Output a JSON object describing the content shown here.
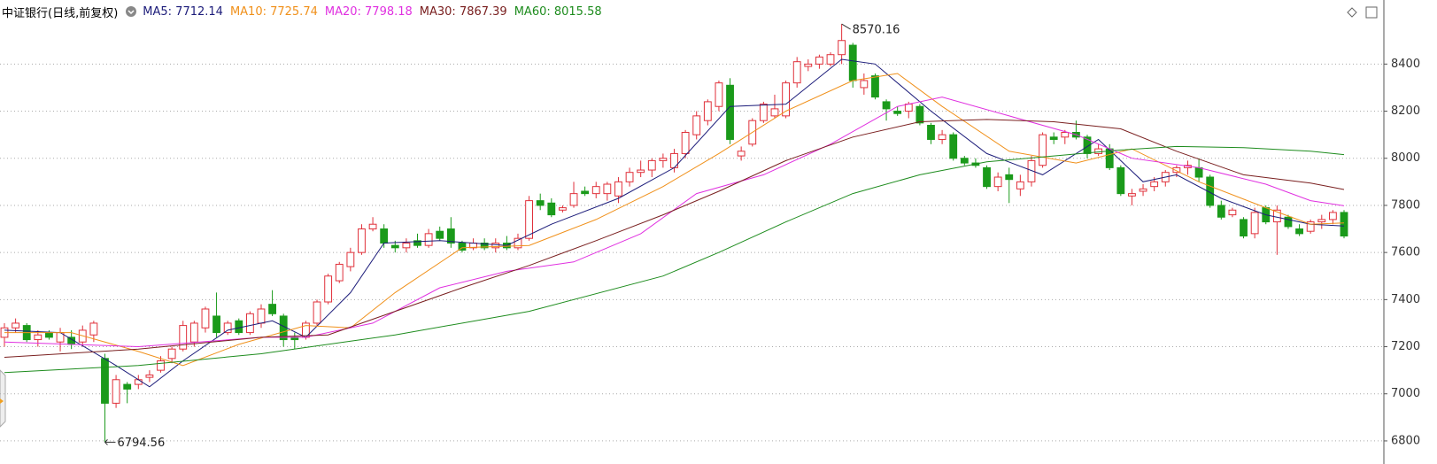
{
  "chart_data": {
    "type": "candlestick",
    "title": "中证银行(日线,前复权)",
    "ylim": [
      6702,
      8672
    ],
    "yticks": [
      6800,
      7000,
      7200,
      7400,
      7600,
      7800,
      8000,
      8200,
      8400
    ],
    "grid": true,
    "up_color": "#e0303a",
    "down_color": "#1a9a1a",
    "ohlc": [
      [
        7240,
        7300,
        7200,
        7280
      ],
      [
        7280,
        7320,
        7260,
        7300
      ],
      [
        7290,
        7300,
        7220,
        7230
      ],
      [
        7230,
        7270,
        7200,
        7250
      ],
      [
        7260,
        7270,
        7230,
        7240
      ],
      [
        7220,
        7280,
        7180,
        7260
      ],
      [
        7240,
        7270,
        7190,
        7210
      ],
      [
        7220,
        7290,
        7200,
        7270
      ],
      [
        7250,
        7310,
        7220,
        7300
      ],
      [
        7150,
        7170,
        6794.56,
        6960
      ],
      [
        6960,
        7080,
        6940,
        7060
      ],
      [
        7040,
        7050,
        6960,
        7020
      ],
      [
        7040,
        7080,
        7020,
        7060
      ],
      [
        7070,
        7100,
        7050,
        7080
      ],
      [
        7100,
        7160,
        7090,
        7140
      ],
      [
        7150,
        7200,
        7130,
        7190
      ],
      [
        7190,
        7310,
        7180,
        7290
      ],
      [
        7220,
        7310,
        7200,
        7300
      ],
      [
        7280,
        7370,
        7260,
        7360
      ],
      [
        7330,
        7430,
        7240,
        7260
      ],
      [
        7260,
        7310,
        7250,
        7300
      ],
      [
        7310,
        7320,
        7250,
        7260
      ],
      [
        7260,
        7350,
        7250,
        7340
      ],
      [
        7300,
        7380,
        7280,
        7360
      ],
      [
        7380,
        7440,
        7330,
        7340
      ],
      [
        7330,
        7340,
        7200,
        7230
      ],
      [
        7240,
        7260,
        7190,
        7230
      ],
      [
        7240,
        7310,
        7230,
        7300
      ],
      [
        7300,
        7400,
        7290,
        7390
      ],
      [
        7390,
        7510,
        7380,
        7500
      ],
      [
        7480,
        7560,
        7470,
        7550
      ],
      [
        7540,
        7620,
        7520,
        7600
      ],
      [
        7600,
        7720,
        7590,
        7700
      ],
      [
        7700,
        7750,
        7690,
        7720
      ],
      [
        7700,
        7720,
        7620,
        7640
      ],
      [
        7630,
        7650,
        7600,
        7620
      ],
      [
        7620,
        7660,
        7600,
        7640
      ],
      [
        7650,
        7680,
        7620,
        7630
      ],
      [
        7630,
        7700,
        7620,
        7680
      ],
      [
        7690,
        7710,
        7650,
        7660
      ],
      [
        7700,
        7750,
        7620,
        7640
      ],
      [
        7640,
        7650,
        7600,
        7610
      ],
      [
        7620,
        7660,
        7610,
        7640
      ],
      [
        7640,
        7660,
        7610,
        7620
      ],
      [
        7620,
        7660,
        7600,
        7640
      ],
      [
        7640,
        7670,
        7610,
        7620
      ],
      [
        7620,
        7680,
        7610,
        7660
      ],
      [
        7660,
        7840,
        7650,
        7820
      ],
      [
        7820,
        7850,
        7780,
        7800
      ],
      [
        7810,
        7830,
        7750,
        7760
      ],
      [
        7780,
        7800,
        7770,
        7790
      ],
      [
        7800,
        7900,
        7790,
        7850
      ],
      [
        7860,
        7880,
        7840,
        7850
      ],
      [
        7850,
        7900,
        7830,
        7880
      ],
      [
        7850,
        7900,
        7820,
        7890
      ],
      [
        7840,
        7920,
        7810,
        7900
      ],
      [
        7900,
        7960,
        7880,
        7940
      ],
      [
        7940,
        7990,
        7920,
        7950
      ],
      [
        7950,
        8000,
        7920,
        7990
      ],
      [
        7990,
        8020,
        7960,
        8000
      ],
      [
        7960,
        8040,
        7940,
        8020
      ],
      [
        8020,
        8120,
        8000,
        8110
      ],
      [
        8100,
        8200,
        8080,
        8180
      ],
      [
        8160,
        8250,
        8140,
        8240
      ],
      [
        8220,
        8330,
        8200,
        8320
      ],
      [
        8310,
        8340,
        8060,
        8080
      ],
      [
        8010,
        8050,
        7990,
        8030
      ],
      [
        8060,
        8170,
        8050,
        8160
      ],
      [
        8160,
        8240,
        8150,
        8230
      ],
      [
        8180,
        8270,
        8170,
        8210
      ],
      [
        8180,
        8330,
        8170,
        8320
      ],
      [
        8320,
        8430,
        8300,
        8410
      ],
      [
        8390,
        8420,
        8370,
        8400
      ],
      [
        8400,
        8440,
        8380,
        8430
      ],
      [
        8400,
        8450,
        8390,
        8440
      ],
      [
        8440,
        8570.16,
        8400,
        8500
      ],
      [
        8480,
        8490,
        8300,
        8330
      ],
      [
        8300,
        8360,
        8270,
        8330
      ],
      [
        8350,
        8360,
        8250,
        8260
      ],
      [
        8240,
        8250,
        8160,
        8210
      ],
      [
        8200,
        8220,
        8180,
        8190
      ],
      [
        8200,
        8240,
        8170,
        8230
      ],
      [
        8220,
        8230,
        8140,
        8150
      ],
      [
        8140,
        8150,
        8060,
        8080
      ],
      [
        8080,
        8120,
        8060,
        8100
      ],
      [
        8100,
        8110,
        7990,
        8000
      ],
      [
        8000,
        8010,
        7970,
        7980
      ],
      [
        7980,
        8000,
        7960,
        7970
      ],
      [
        7960,
        7970,
        7870,
        7880
      ],
      [
        7880,
        7940,
        7860,
        7920
      ],
      [
        7930,
        7960,
        7810,
        7910
      ],
      [
        7870,
        7930,
        7840,
        7900
      ],
      [
        7900,
        8010,
        7880,
        7990
      ],
      [
        7970,
        8110,
        7960,
        8100
      ],
      [
        8090,
        8110,
        8060,
        8080
      ],
      [
        8090,
        8120,
        8060,
        8110
      ],
      [
        8110,
        8160,
        8080,
        8090
      ],
      [
        8090,
        8100,
        8000,
        8020
      ],
      [
        8020,
        8060,
        8010,
        8040
      ],
      [
        8040,
        8060,
        7950,
        7960
      ],
      [
        7960,
        7970,
        7840,
        7850
      ],
      [
        7840,
        7870,
        7800,
        7850
      ],
      [
        7860,
        7890,
        7840,
        7870
      ],
      [
        7880,
        7920,
        7860,
        7900
      ],
      [
        7900,
        7950,
        7880,
        7940
      ],
      [
        7940,
        7970,
        7920,
        7960
      ],
      [
        7960,
        7990,
        7930,
        7970
      ],
      [
        7960,
        8000,
        7900,
        7920
      ],
      [
        7920,
        7930,
        7790,
        7800
      ],
      [
        7800,
        7820,
        7740,
        7750
      ],
      [
        7760,
        7790,
        7750,
        7780
      ],
      [
        7740,
        7750,
        7660,
        7670
      ],
      [
        7680,
        7790,
        7660,
        7770
      ],
      [
        7790,
        7800,
        7720,
        7730
      ],
      [
        7730,
        7800,
        7590,
        7780
      ],
      [
        7750,
        7760,
        7700,
        7710
      ],
      [
        7700,
        7720,
        7670,
        7680
      ],
      [
        7690,
        7740,
        7680,
        7730
      ],
      [
        7730,
        7760,
        7700,
        7740
      ],
      [
        7740,
        7780,
        7720,
        7770
      ],
      [
        7770,
        7780,
        7660,
        7670
      ]
    ],
    "high_label_index": 75,
    "low_label_index": 9,
    "series": [
      {
        "name": "MA5",
        "legend_label": "MA5: 7712.14",
        "color": "#1c1c7a",
        "x": [
          0,
          5,
          10,
          13,
          16,
          20,
          24,
          27,
          31,
          34,
          39,
          45,
          49,
          55,
          60,
          65,
          70,
          75,
          78,
          83,
          88,
          93,
          98,
          102,
          105,
          109,
          113,
          117,
          120
        ],
        "values": [
          7270,
          7260,
          7120,
          7030,
          7140,
          7270,
          7310,
          7240,
          7430,
          7640,
          7650,
          7630,
          7720,
          7830,
          7960,
          8220,
          8230,
          8420,
          8400,
          8200,
          8020,
          7930,
          8080,
          7900,
          7930,
          7830,
          7760,
          7720,
          7712.14
        ]
      },
      {
        "name": "MA10",
        "legend_label": "MA10: 7725.74",
        "color": "#f0901a",
        "x": [
          0,
          6,
          12,
          16,
          21,
          27,
          31,
          35,
          41,
          47,
          53,
          59,
          64,
          70,
          76,
          80,
          84,
          90,
          96,
          101,
          107,
          113,
          117,
          120
        ],
        "values": [
          7260,
          7260,
          7180,
          7120,
          7210,
          7290,
          7280,
          7430,
          7620,
          7630,
          7740,
          7880,
          8020,
          8200,
          8330,
          8360,
          8220,
          8030,
          7980,
          8040,
          7900,
          7790,
          7720,
          7725.74
        ]
      },
      {
        "name": "MA20",
        "legend_label": "MA20: 7798.18",
        "color": "#e030e0",
        "x": [
          0,
          12,
          23,
          27,
          33,
          39,
          45,
          51,
          57,
          62,
          68,
          74,
          80,
          84,
          90,
          96,
          101,
          107,
          113,
          117,
          120
        ],
        "values": [
          7220,
          7200,
          7240,
          7240,
          7300,
          7450,
          7520,
          7560,
          7680,
          7850,
          7930,
          8060,
          8220,
          8260,
          8180,
          8100,
          8000,
          7960,
          7890,
          7820,
          7798.18
        ]
      },
      {
        "name": "MA30",
        "legend_label": "MA30: 7867.39",
        "color": "#7a2020",
        "x": [
          0,
          12,
          23,
          29,
          35,
          41,
          47,
          53,
          59,
          64,
          70,
          76,
          82,
          88,
          94,
          100,
          105,
          111,
          117,
          120
        ],
        "values": [
          7155,
          7190,
          7240,
          7250,
          7350,
          7450,
          7545,
          7650,
          7760,
          7860,
          7990,
          8090,
          8155,
          8165,
          8155,
          8125,
          8030,
          7930,
          7895,
          7867.39
        ]
      },
      {
        "name": "MA60",
        "legend_label": "MA60: 8015.58",
        "color": "#1e8c1e",
        "x": [
          0,
          12,
          23,
          35,
          47,
          59,
          64,
          70,
          76,
          82,
          88,
          94,
          100,
          105,
          111,
          117,
          120
        ],
        "values": [
          7090,
          7120,
          7170,
          7250,
          7350,
          7500,
          7600,
          7730,
          7850,
          7930,
          7985,
          8010,
          8035,
          8050,
          8045,
          8030,
          8015.58
        ]
      }
    ]
  }
}
